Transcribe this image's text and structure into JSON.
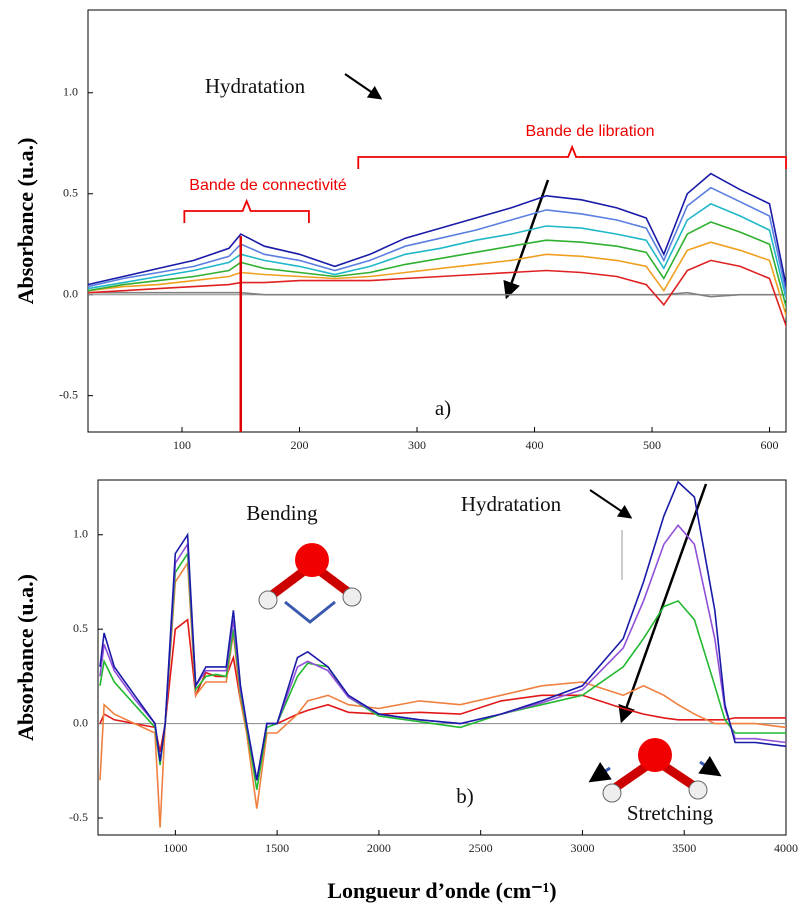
{
  "chart_data": [
    {
      "type": "line",
      "y_label": "Absorbance (u.a.)",
      "xlim": [
        20,
        614
      ],
      "ylim": [
        -0.68,
        1.41
      ],
      "xticks": [
        100,
        200,
        300,
        400,
        500,
        600
      ],
      "yticks": [
        {
          "value": -0.5,
          "label": "-0.5"
        },
        {
          "value": 0,
          "label": "0.0"
        },
        {
          "value": 0.5,
          "label": "0.5"
        },
        {
          "value": 1,
          "label": "1.0"
        }
      ],
      "vline": 150,
      "vline_color": "#e00000",
      "annotations": [
        {
          "text": "Hydratation"
        },
        {
          "text": "Bande de libration",
          "range": [
            250,
            614
          ]
        },
        {
          "text": "Bande de connectivité",
          "range": [
            102,
            208
          ]
        },
        {
          "text": "a)"
        }
      ],
      "x": [
        20,
        50,
        80,
        110,
        140,
        150,
        170,
        200,
        230,
        260,
        290,
        320,
        350,
        380,
        410,
        440,
        470,
        495,
        510,
        530,
        550,
        575,
        600,
        615
      ],
      "series": [
        {
          "color": "#1a1aa8",
          "values": [
            0.05,
            0.09,
            0.13,
            0.17,
            0.23,
            0.3,
            0.24,
            0.2,
            0.14,
            0.2,
            0.28,
            0.33,
            0.38,
            0.43,
            0.49,
            0.47,
            0.43,
            0.38,
            0.2,
            0.5,
            0.6,
            0.52,
            0.45,
            0.02
          ]
        },
        {
          "color": "#5a7fe0",
          "values": [
            0.04,
            0.08,
            0.11,
            0.14,
            0.19,
            0.25,
            0.2,
            0.17,
            0.12,
            0.17,
            0.24,
            0.28,
            0.32,
            0.37,
            0.42,
            0.4,
            0.37,
            0.33,
            0.17,
            0.44,
            0.53,
            0.46,
            0.39,
            -0.01
          ]
        },
        {
          "color": "#20b8c8",
          "values": [
            0.03,
            0.06,
            0.09,
            0.12,
            0.16,
            0.2,
            0.17,
            0.14,
            0.1,
            0.14,
            0.2,
            0.23,
            0.27,
            0.3,
            0.34,
            0.33,
            0.3,
            0.27,
            0.13,
            0.37,
            0.45,
            0.39,
            0.32,
            -0.04
          ]
        },
        {
          "color": "#30b030",
          "values": [
            0.02,
            0.05,
            0.07,
            0.09,
            0.12,
            0.16,
            0.13,
            0.11,
            0.09,
            0.11,
            0.15,
            0.18,
            0.21,
            0.24,
            0.27,
            0.26,
            0.24,
            0.21,
            0.08,
            0.3,
            0.36,
            0.31,
            0.25,
            -0.08
          ]
        },
        {
          "color": "#f0a020",
          "values": [
            0.02,
            0.04,
            0.05,
            0.07,
            0.09,
            0.11,
            0.1,
            0.09,
            0.08,
            0.09,
            0.11,
            0.13,
            0.15,
            0.17,
            0.2,
            0.19,
            0.17,
            0.14,
            0.02,
            0.22,
            0.26,
            0.22,
            0.17,
            -0.12
          ]
        },
        {
          "color": "#e02020",
          "values": [
            0.01,
            0.02,
            0.03,
            0.04,
            0.05,
            0.06,
            0.06,
            0.07,
            0.07,
            0.07,
            0.08,
            0.09,
            0.1,
            0.11,
            0.12,
            0.11,
            0.09,
            0.05,
            -0.05,
            0.12,
            0.17,
            0.14,
            0.08,
            -0.17
          ]
        },
        {
          "color": "#808080",
          "values": [
            0.01,
            0.01,
            0.01,
            0.01,
            0.01,
            0.01,
            0,
            0,
            0,
            0,
            0,
            0,
            0,
            0,
            0,
            0,
            0,
            0,
            0,
            0.01,
            -0.01,
            0,
            0,
            0
          ]
        }
      ]
    },
    {
      "type": "line",
      "y_label": "Absorbance (u.a.)",
      "x_label": "Longueur d’onde (cm⁻¹)",
      "xlim": [
        620,
        4000
      ],
      "ylim": [
        -0.59,
        1.29
      ],
      "xticks": [
        1000,
        1500,
        2000,
        2500,
        3000,
        3500,
        4000
      ],
      "yticks": [
        {
          "value": -0.5,
          "label": "-0.5"
        },
        {
          "value": 0,
          "label": "0.0"
        },
        {
          "value": 0.5,
          "label": "0.5"
        },
        {
          "value": 1,
          "label": "1.0"
        }
      ],
      "annotations": [
        {
          "text": "Bending"
        },
        {
          "text": "Hydratation"
        },
        {
          "text": "Stretching"
        },
        {
          "text": "b)"
        }
      ],
      "x": [
        630,
        650,
        700,
        800,
        900,
        925,
        950,
        1000,
        1060,
        1100,
        1150,
        1200,
        1250,
        1285,
        1320,
        1350,
        1400,
        1450,
        1500,
        1600,
        1650,
        1750,
        1850,
        2000,
        2200,
        2400,
        2600,
        2800,
        3000,
        3200,
        3300,
        3400,
        3470,
        3550,
        3650,
        3700,
        3750,
        3850,
        4000
      ],
      "series": [
        {
          "color": "#1a1aa8",
          "values": [
            0.3,
            0.48,
            0.3,
            0.15,
            0.0,
            -0.2,
            0.0,
            0.9,
            1.0,
            0.2,
            0.3,
            0.3,
            0.3,
            0.6,
            0.2,
            0.0,
            -0.3,
            0.0,
            0.0,
            0.35,
            0.38,
            0.3,
            0.15,
            0.05,
            0.02,
            0.0,
            0.05,
            0.12,
            0.2,
            0.45,
            0.75,
            1.1,
            1.28,
            1.2,
            0.6,
            0.1,
            -0.1,
            -0.1,
            -0.12
          ]
        },
        {
          "color": "#9050d8",
          "values": [
            0.25,
            0.42,
            0.28,
            0.13,
            0.0,
            -0.2,
            0.0,
            0.85,
            0.95,
            0.2,
            0.28,
            0.28,
            0.28,
            0.55,
            0.18,
            0,
            -0.3,
            0,
            0,
            0.3,
            0.33,
            0.28,
            0.14,
            0.05,
            0.02,
            0,
            0.05,
            0.11,
            0.18,
            0.4,
            0.65,
            0.95,
            1.05,
            0.95,
            0.45,
            0.08,
            -0.08,
            -0.08,
            -0.1
          ]
        },
        {
          "color": "#22b830",
          "values": [
            0.2,
            0.33,
            0.22,
            0.1,
            -0.02,
            -0.22,
            0,
            0.8,
            0.9,
            0.18,
            0.25,
            0.26,
            0.25,
            0.5,
            0.16,
            -0.02,
            -0.35,
            -0.02,
            0,
            0.25,
            0.32,
            0.3,
            0.14,
            0.04,
            0.01,
            -0.02,
            0.05,
            0.1,
            0.15,
            0.3,
            0.45,
            0.62,
            0.65,
            0.55,
            0.2,
            0.02,
            -0.05,
            -0.05,
            -0.05
          ]
        },
        {
          "color": "#f08040",
          "values": [
            -0.3,
            0.1,
            0.05,
            0,
            -0.05,
            -0.55,
            0,
            0.75,
            0.85,
            0.15,
            0.22,
            0.22,
            0.22,
            0.48,
            0.12,
            -0.05,
            -0.45,
            -0.05,
            -0.05,
            0.05,
            0.12,
            0.15,
            0.1,
            0.08,
            0.12,
            0.1,
            0.15,
            0.2,
            0.22,
            0.15,
            0.2,
            0.15,
            0.1,
            0.05,
            0,
            0,
            0,
            0,
            -0.02
          ]
        },
        {
          "color": "#e01818",
          "values": [
            0,
            0.05,
            0.02,
            0,
            -0.02,
            -0.15,
            0,
            0.5,
            0.55,
            0.15,
            0.27,
            0.25,
            0.25,
            0.35,
            0.12,
            -0.02,
            -0.3,
            0,
            0,
            0.05,
            0.07,
            0.1,
            0.06,
            0.05,
            0.06,
            0.05,
            0.12,
            0.15,
            0.15,
            0.08,
            0.05,
            0.03,
            0.02,
            0.02,
            0.02,
            0.02,
            0.03,
            0.03,
            0.03
          ]
        }
      ]
    }
  ]
}
